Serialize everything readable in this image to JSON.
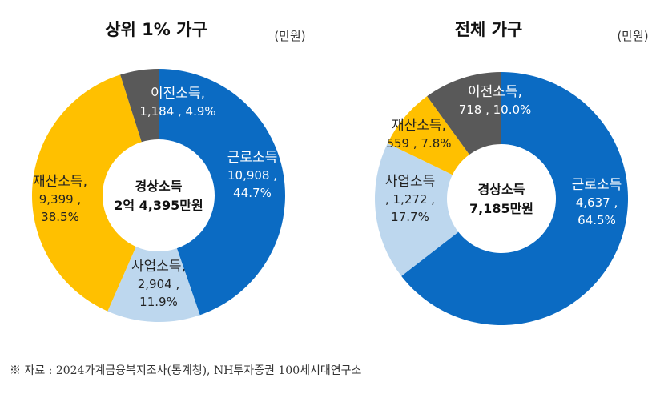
{
  "colors": {
    "근로소득": "#0b6bc3",
    "사업소득": "#bdd7ee",
    "재산소득": "#ffc000",
    "이전소득": "#595959"
  },
  "chart_data": [
    {
      "type": "pie",
      "donut": true,
      "title": "상위 1% 가구",
      "unit": "(만원)",
      "center_label": [
        "경상소득",
        "2억 4,395만원"
      ],
      "slices": [
        {
          "name": "근로소득",
          "value": 10908,
          "percent": 44.7,
          "label": [
            "근로소득",
            "10,908 ,",
            "44.7%"
          ]
        },
        {
          "name": "사업소득",
          "value": 2904,
          "percent": 11.9,
          "label": [
            "사업소득,",
            "2,904 ,",
            "11.9%"
          ]
        },
        {
          "name": "재산소득",
          "value": 9399,
          "percent": 38.5,
          "label": [
            "재산소득,",
            "9,399 ,",
            "38.5%"
          ]
        },
        {
          "name": "이전소득",
          "value": 1184,
          "percent": 4.9,
          "label": [
            "이전소득,",
            "1,184 , 4.9%"
          ]
        }
      ]
    },
    {
      "type": "pie",
      "donut": true,
      "title": "전체 가구",
      "unit": "(만원)",
      "center_label": [
        "경상소득",
        "7,185만원"
      ],
      "slices": [
        {
          "name": "근로소득",
          "value": 4637,
          "percent": 64.5,
          "label": [
            "근로소득",
            "4,637 ,",
            "64.5%"
          ]
        },
        {
          "name": "사업소득",
          "value": 1272,
          "percent": 17.7,
          "label": [
            "사업소득",
            ", 1,272 ,",
            "17.7%"
          ]
        },
        {
          "name": "재산소득",
          "value": 559,
          "percent": 7.8,
          "label": [
            "재산소득,",
            "559 , 7.8%"
          ]
        },
        {
          "name": "이전소득",
          "value": 718,
          "percent": 10.0,
          "label": [
            "이전소득,",
            "718 , 10.0%"
          ]
        }
      ]
    }
  ],
  "source": "※ 자료 : 2024가계금융복지조사(통계청), NH투자증권 100세시대연구소"
}
